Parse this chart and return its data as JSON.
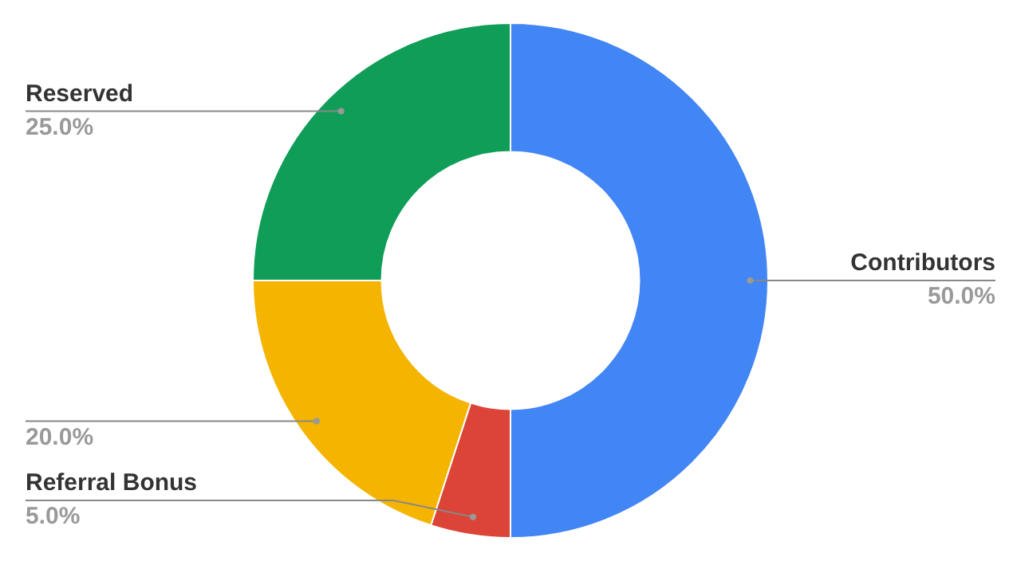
{
  "chart_data": {
    "type": "donut",
    "categories": [
      "Contributors",
      "Referral Bonus",
      null,
      "Reserved"
    ],
    "values": [
      50,
      5,
      20,
      25
    ],
    "colors": [
      "#4285f4",
      "#db4437",
      "#f4b400",
      "#0f9d58"
    ],
    "value_labels": [
      "50.0%",
      "5.0%",
      "20.0%",
      "25.0%"
    ],
    "legend": false
  }
}
